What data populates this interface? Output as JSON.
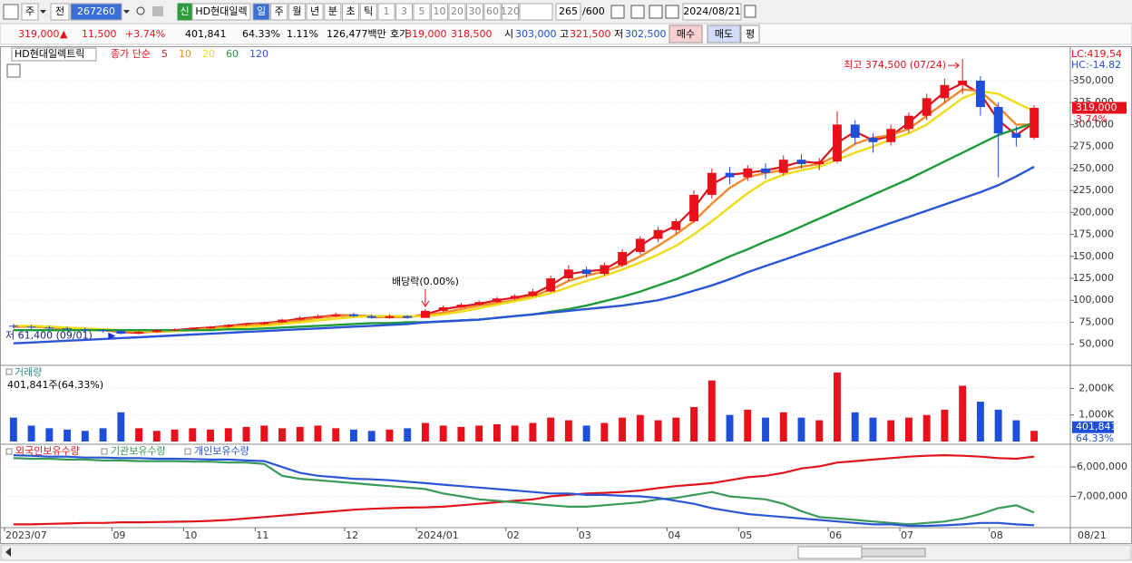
{
  "toolbar": {
    "market": "주",
    "all": "전",
    "code": "267260",
    "new": "신",
    "name": "HD현대일렉",
    "periods": [
      "일",
      "주",
      "월",
      "년",
      "분",
      "초",
      "틱"
    ],
    "intervals": [
      "1",
      "3",
      "5",
      "10",
      "20",
      "30",
      "60",
      "120"
    ],
    "count": "265",
    "max_count": "/600",
    "date": "2024/08/21"
  },
  "quote": {
    "price": "319,000",
    "arrow": "▲",
    "change": "11,500",
    "change_rate": "+3.74%",
    "volume": "401,841",
    "volume_ratio": "64.33%",
    "turnover": "1.11%",
    "amount": "126,477백만",
    "ask_label": "호가",
    "ask": "319,000",
    "bid": "318,500",
    "open_label": "시",
    "open": "303,000",
    "high_label": "고",
    "high": "321,500",
    "low_label": "저",
    "low": "302,500",
    "buy": "매수",
    "sell": "매도",
    "avg": "평"
  },
  "chart_data": [
    {
      "type": "candlestick",
      "title": "HD현대일렉트릭",
      "ma_label": "종가 단순",
      "categories": [
        "2023/07",
        null,
        null,
        null,
        null,
        null,
        "09",
        null,
        null,
        null,
        "10",
        null,
        null,
        null,
        "11",
        null,
        null,
        null,
        null,
        "12",
        null,
        null,
        null,
        "2024/01",
        null,
        null,
        null,
        null,
        "02",
        null,
        null,
        null,
        "03",
        null,
        null,
        null,
        null,
        "04",
        null,
        null,
        null,
        "05",
        null,
        null,
        null,
        null,
        "06",
        null,
        null,
        null,
        "07",
        null,
        null,
        null,
        null,
        "08",
        null,
        null
      ],
      "open": [
        71000,
        70000,
        69000,
        68000,
        67000,
        66000,
        65000,
        62000,
        64000,
        66000,
        67000,
        68000,
        70000,
        72000,
        73000,
        75000,
        78000,
        80000,
        82000,
        84000,
        82000,
        80000,
        82000,
        80000,
        88000,
        92000,
        95000,
        98000,
        102000,
        105000,
        110000,
        125000,
        135000,
        130000,
        140000,
        155000,
        170000,
        180000,
        190000,
        220000,
        245000,
        240000,
        250000,
        245000,
        260000,
        255000,
        258000,
        300000,
        285000,
        280000,
        295000,
        310000,
        330000,
        345000,
        350000,
        320000,
        290000,
        285000
      ],
      "high": [
        73000,
        72000,
        71000,
        70000,
        69000,
        67000,
        66000,
        65000,
        67000,
        68000,
        69000,
        71000,
        73000,
        74000,
        76000,
        79000,
        82000,
        84000,
        86000,
        86000,
        84000,
        84000,
        83000,
        90000,
        94000,
        97000,
        100000,
        104000,
        107000,
        113000,
        128000,
        140000,
        138000,
        143000,
        158000,
        173000,
        184000,
        193000,
        225000,
        250000,
        252000,
        254000,
        256000,
        265000,
        266000,
        262000,
        315000,
        305000,
        290000,
        300000,
        314000,
        335000,
        352000,
        374500,
        355000,
        325000,
        298000,
        322000
      ],
      "low": [
        68000,
        67000,
        66000,
        65000,
        64000,
        63000,
        61400,
        61500,
        63000,
        65000,
        66000,
        67000,
        69000,
        71000,
        72000,
        74000,
        77000,
        79000,
        81000,
        81000,
        79000,
        79000,
        79000,
        80000,
        87000,
        91000,
        94000,
        97000,
        100000,
        104000,
        109000,
        122000,
        126000,
        128000,
        138000,
        152000,
        166000,
        176000,
        188000,
        216000,
        232000,
        236000,
        238000,
        242000,
        250000,
        248000,
        256000,
        278000,
        268000,
        276000,
        290000,
        305000,
        325000,
        335000,
        310000,
        240000,
        275000,
        283000
      ],
      "close": [
        70000,
        69000,
        68000,
        67000,
        66000,
        65000,
        62000,
        64000,
        66000,
        67000,
        68000,
        70000,
        72000,
        73000,
        75000,
        78000,
        80000,
        82000,
        84000,
        82000,
        80000,
        82000,
        80000,
        88000,
        92000,
        95000,
        98000,
        102000,
        105000,
        110000,
        125000,
        135000,
        130000,
        140000,
        155000,
        170000,
        180000,
        190000,
        220000,
        245000,
        240000,
        250000,
        245000,
        260000,
        255000,
        258000,
        300000,
        285000,
        280000,
        295000,
        310000,
        330000,
        345000,
        350000,
        320000,
        290000,
        285000,
        319000
      ],
      "up_color": "#e8101a",
      "down_color": "#1f4fd8",
      "series": [
        {
          "name": "5",
          "color": "#d8141c",
          "values": [
            70000,
            70000,
            69000,
            68000,
            67000,
            66000,
            64000,
            63000,
            65000,
            66000,
            68000,
            69000,
            71000,
            73000,
            74000,
            76000,
            79000,
            81000,
            83000,
            83000,
            81000,
            81000,
            81000,
            84000,
            90000,
            93000,
            96000,
            100000,
            103000,
            107000,
            117000,
            130000,
            133000,
            135000,
            147000,
            162000,
            175000,
            185000,
            205000,
            232000,
            243000,
            245000,
            248000,
            252000,
            258000,
            256000,
            279000,
            292000,
            282000,
            287000,
            302000,
            320000,
            337000,
            347000,
            335000,
            305000,
            288000,
            302000
          ]
        },
        {
          "name": "10",
          "color": "#f08a2a",
          "values": [
            71000,
            70000,
            69000,
            68000,
            67000,
            66000,
            65000,
            64000,
            64000,
            65000,
            66000,
            68000,
            70000,
            72000,
            73000,
            75000,
            77000,
            80000,
            82000,
            83000,
            82000,
            81000,
            81000,
            83000,
            86000,
            90000,
            94000,
            97000,
            100000,
            105000,
            112000,
            122000,
            128000,
            133000,
            140000,
            150000,
            162000,
            175000,
            190000,
            210000,
            228000,
            240000,
            245000,
            248000,
            252000,
            255000,
            265000,
            278000,
            285000,
            288000,
            295000,
            310000,
            325000,
            340000,
            338000,
            320000,
            300000,
            300000
          ]
        },
        {
          "name": "20",
          "color": "#f0dc14",
          "values": [
            71000,
            71000,
            70000,
            69000,
            68000,
            67000,
            66000,
            65000,
            65000,
            65000,
            66000,
            67000,
            68000,
            70000,
            71000,
            73000,
            75000,
            77000,
            79000,
            81000,
            82000,
            82000,
            82000,
            82000,
            84000,
            87000,
            91000,
            95000,
            99000,
            103000,
            108000,
            115000,
            122000,
            128000,
            135000,
            143000,
            152000,
            162000,
            175000,
            190000,
            206000,
            222000,
            235000,
            243000,
            248000,
            252000,
            260000,
            268000,
            275000,
            283000,
            290000,
            300000,
            315000,
            330000,
            338000,
            335000,
            325000,
            315000
          ]
        },
        {
          "name": "60",
          "color": "#1e9a3a",
          "values": [
            66000,
            66000,
            66000,
            66000,
            66000,
            66000,
            66000,
            66000,
            66000,
            66000,
            66000,
            66000,
            67000,
            67000,
            68000,
            69000,
            70000,
            71000,
            72000,
            73000,
            74000,
            74000,
            75000,
            75000,
            76000,
            77000,
            78000,
            80000,
            82000,
            84000,
            87000,
            90000,
            94000,
            99000,
            104000,
            110000,
            117000,
            124000,
            132000,
            141000,
            150000,
            158000,
            167000,
            175000,
            184000,
            193000,
            202000,
            211000,
            220000,
            229000,
            238000,
            248000,
            258000,
            268000,
            278000,
            288000,
            295000,
            302000
          ]
        },
        {
          "name": "120",
          "color": "#2a55d6",
          "values": [
            51000,
            52000,
            53000,
            54000,
            55000,
            56000,
            57000,
            58000,
            59000,
            60000,
            61000,
            62000,
            63000,
            64000,
            65000,
            66000,
            67000,
            68000,
            69000,
            70000,
            71000,
            72000,
            73000,
            75000,
            76000,
            77000,
            78000,
            80000,
            82000,
            84000,
            86000,
            88000,
            90000,
            92000,
            94000,
            97000,
            100000,
            105000,
            111000,
            117000,
            124000,
            132000,
            139000,
            146000,
            153000,
            160000,
            167000,
            174000,
            181000,
            188000,
            195000,
            202000,
            209000,
            216000,
            223000,
            231000,
            241000,
            252000
          ]
        }
      ],
      "ylim": [
        27000,
        385000
      ],
      "yticks": [
        {
          "value": 50000,
          "label": "50,000"
        },
        {
          "value": 75000,
          "label": "75,000"
        },
        {
          "value": 100000,
          "label": "100,000"
        },
        {
          "value": 125000,
          "label": "125,000"
        },
        {
          "value": 150000,
          "label": "150,000"
        },
        {
          "value": 175000,
          "label": "175,000"
        },
        {
          "value": 200000,
          "label": "200,000"
        },
        {
          "value": 225000,
          "label": "225,000"
        },
        {
          "value": 250000,
          "label": "250,000"
        },
        {
          "value": 275000,
          "label": "275,000"
        },
        {
          "value": 300000,
          "label": "300,000"
        },
        {
          "value": 325000,
          "label": "325,000"
        },
        {
          "value": 350000,
          "label": "350,000"
        }
      ],
      "grid": true,
      "annotations": [
        "최고 374,500 (07/24)",
        "저 61,400 (09/01)",
        "배당락(0.00%)"
      ],
      "last_price_label": "319,000",
      "last_change_label": "3.74%",
      "lc": "LC:419,54",
      "hc": "HC:-14.82",
      "last_date": "08/21"
    },
    {
      "type": "bar",
      "title": "거래량",
      "subtitle": "401,841주(64.33%)",
      "values": [
        900000,
        600000,
        500000,
        450000,
        400000,
        500000,
        1100000,
        500000,
        400000,
        450000,
        500000,
        450000,
        500000,
        550000,
        600000,
        500000,
        550000,
        600000,
        500000,
        450000,
        400000,
        450000,
        500000,
        700000,
        600000,
        550000,
        600000,
        650000,
        600000,
        700000,
        900000,
        800000,
        600000,
        700000,
        900000,
        1000000,
        800000,
        900000,
        1300000,
        2300000,
        1000000,
        1200000,
        900000,
        1100000,
        900000,
        800000,
        2600000,
        1100000,
        900000,
        800000,
        900000,
        1000000,
        1200000,
        2100000,
        1500000,
        1200000,
        800000,
        401841
      ],
      "ylim": [
        0,
        2800000
      ],
      "yticks": [
        {
          "value": 1000000,
          "label": "1,000K"
        },
        {
          "value": 2000000,
          "label": "2,000K"
        }
      ],
      "grid": true,
      "last_value_label": "401,841",
      "last_ratio_label": "64.33%"
    },
    {
      "type": "line",
      "series": [
        {
          "name": "외국인보유수량",
          "color": "#e0141c",
          "values": [
            -7950000,
            -7950000,
            -7930000,
            -7920000,
            -7900000,
            -7900000,
            -7880000,
            -7880000,
            -7870000,
            -7860000,
            -7850000,
            -7830000,
            -7800000,
            -7750000,
            -7700000,
            -7650000,
            -7600000,
            -7550000,
            -7500000,
            -7450000,
            -7420000,
            -7400000,
            -7380000,
            -7370000,
            -7350000,
            -7300000,
            -7250000,
            -7200000,
            -7150000,
            -7100000,
            -7000000,
            -6950000,
            -6900000,
            -6880000,
            -6850000,
            -6800000,
            -6720000,
            -6650000,
            -6600000,
            -6550000,
            -6450000,
            -6350000,
            -6300000,
            -6200000,
            -6050000,
            -5980000,
            -5850000,
            -5800000,
            -5750000,
            -5700000,
            -5650000,
            -5620000,
            -5600000,
            -5620000,
            -5650000,
            -5700000,
            -5720000,
            -5650000
          ]
        },
        {
          "name": "기관보유수량",
          "color": "#3a9a5a",
          "values": [
            -5700000,
            -5720000,
            -5720000,
            -5750000,
            -5750000,
            -5780000,
            -5780000,
            -5800000,
            -5800000,
            -5800000,
            -5820000,
            -5820000,
            -5850000,
            -5850000,
            -5900000,
            -6300000,
            -6400000,
            -6450000,
            -6500000,
            -6550000,
            -6600000,
            -6650000,
            -6700000,
            -6750000,
            -6900000,
            -7000000,
            -7100000,
            -7150000,
            -7200000,
            -7250000,
            -7300000,
            -7350000,
            -7350000,
            -7300000,
            -7250000,
            -7200000,
            -7100000,
            -7050000,
            -6950000,
            -6850000,
            -7000000,
            -7050000,
            -7100000,
            -7250000,
            -7500000,
            -7700000,
            -7750000,
            -7800000,
            -7850000,
            -7900000,
            -7950000,
            -7900000,
            -7850000,
            -7750000,
            -7600000,
            -7400000,
            -7300000,
            -7550000
          ]
        },
        {
          "name": "개인보유수량",
          "color": "#2a55d6",
          "values": [
            -5600000,
            -5620000,
            -5650000,
            -5650000,
            -5680000,
            -5680000,
            -5700000,
            -5700000,
            -5720000,
            -5720000,
            -5730000,
            -5750000,
            -5750000,
            -5780000,
            -5800000,
            -6000000,
            -6200000,
            -6300000,
            -6350000,
            -6400000,
            -6420000,
            -6450000,
            -6500000,
            -6550000,
            -6600000,
            -6650000,
            -6700000,
            -6750000,
            -6800000,
            -6850000,
            -6900000,
            -6900000,
            -6950000,
            -6950000,
            -6980000,
            -7000000,
            -7050000,
            -7150000,
            -7250000,
            -7400000,
            -7500000,
            -7600000,
            -7650000,
            -7700000,
            -7750000,
            -7800000,
            -7850000,
            -7900000,
            -7950000,
            -7950000,
            -8000000,
            -8000000,
            -7980000,
            -7950000,
            -7900000,
            -7900000,
            -7950000,
            -7980000
          ]
        }
      ],
      "ylim": [
        -8030000,
        -5290000
      ],
      "yticks": [
        {
          "value": -6000000,
          "label": "-6,000,000"
        },
        {
          "value": -7000000,
          "label": "-7,000,000"
        }
      ],
      "grid": true
    }
  ]
}
